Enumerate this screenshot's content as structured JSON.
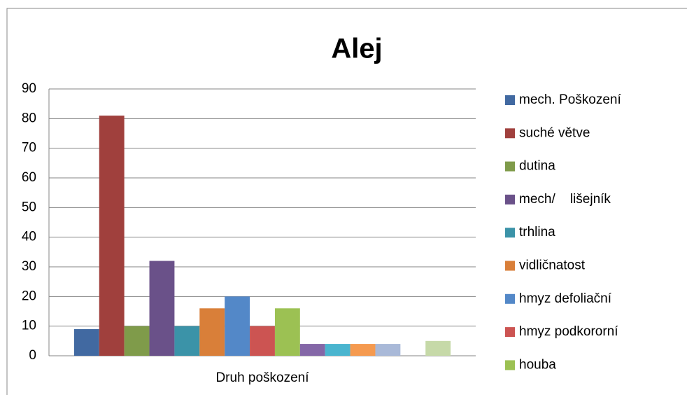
{
  "chart_data": {
    "type": "bar",
    "title": "Alej",
    "categories": [
      "Druh poškození"
    ],
    "series": [
      {
        "name": "mech. Poškození",
        "color": "#4169a1",
        "values": [
          9
        ]
      },
      {
        "name": "suché větve",
        "color": "#a0403d",
        "values": [
          81
        ]
      },
      {
        "name": "dutina",
        "color": "#7f9b4a",
        "values": [
          10
        ]
      },
      {
        "name": "mech/    lišejník",
        "color": "#6a5189",
        "values": [
          32
        ]
      },
      {
        "name": "trhlina",
        "color": "#3b93a8",
        "values": [
          10
        ]
      },
      {
        "name": "vidličnatost",
        "color": "#d97f39",
        "values": [
          16
        ]
      },
      {
        "name": "hmyz defoliační",
        "color": "#5388c8",
        "values": [
          20
        ]
      },
      {
        "name": "hmyz podkororní",
        "color": "#cc5452",
        "values": [
          10
        ]
      },
      {
        "name": "houba",
        "color": "#9cc153",
        "values": [
          16
        ]
      },
      {
        "name": null,
        "color": "#8467a7",
        "values": [
          4
        ]
      },
      {
        "name": null,
        "color": "#4ab5cf",
        "values": [
          4
        ]
      },
      {
        "name": null,
        "color": "#f59a4f",
        "values": [
          4
        ]
      },
      {
        "name": null,
        "color": "#a9b9d8",
        "values": [
          4
        ]
      },
      {
        "name": null,
        "color": "#d9a9a8",
        "values": [
          0
        ]
      },
      {
        "name": null,
        "color": "#c6d9a8",
        "values": [
          5
        ]
      }
    ],
    "ylim": [
      0,
      90
    ],
    "yticks": [
      0,
      10,
      20,
      30,
      40,
      50,
      60,
      70,
      80,
      90
    ],
    "grid": true,
    "legend": "right"
  }
}
